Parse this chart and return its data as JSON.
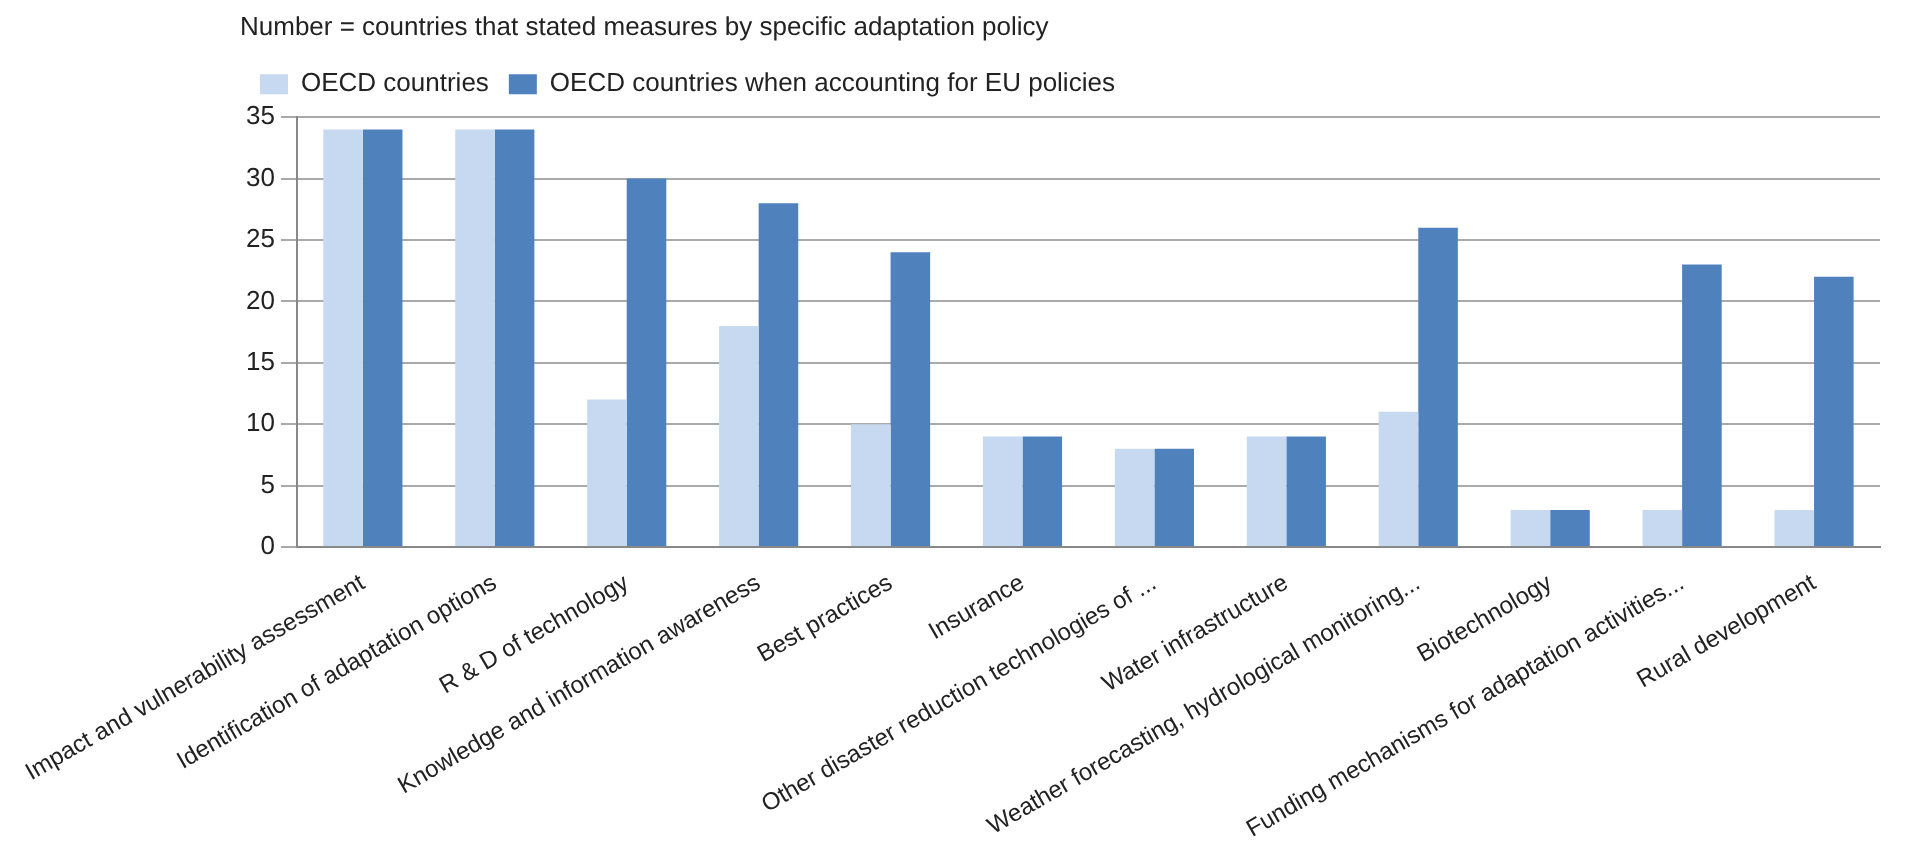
{
  "chart_data": {
    "type": "bar",
    "title": "Number = countries that stated measures by specific adaptation policy",
    "categories": [
      "Impact and vulnerability assessment",
      "Identification of adaptation options",
      "R & D of technology",
      "Knowledge and information awareness",
      "Best practices",
      "Insurance",
      "Other disaster reduction technologies of ...",
      "Water infrastructure",
      "Weather forecasting, hydrological monitoring...",
      "Biotechnology",
      "Funding mechanisms for adaptation activities...",
      "Rural development"
    ],
    "series": [
      {
        "name": "OECD countries",
        "color": "#c6d9f1",
        "values": [
          34,
          34,
          12,
          18,
          10,
          9,
          8,
          9,
          11,
          3,
          3,
          3
        ]
      },
      {
        "name": "OECD countries when accounting for EU policies",
        "color": "#4f81bd",
        "values": [
          34,
          34,
          30,
          28,
          24,
          9,
          8,
          9,
          26,
          3,
          23,
          22
        ]
      }
    ],
    "ylim": [
      0,
      35
    ],
    "yticks": [
      0,
      5,
      10,
      15,
      20,
      25,
      30,
      35
    ],
    "grid": "y",
    "legend": "top left"
  }
}
